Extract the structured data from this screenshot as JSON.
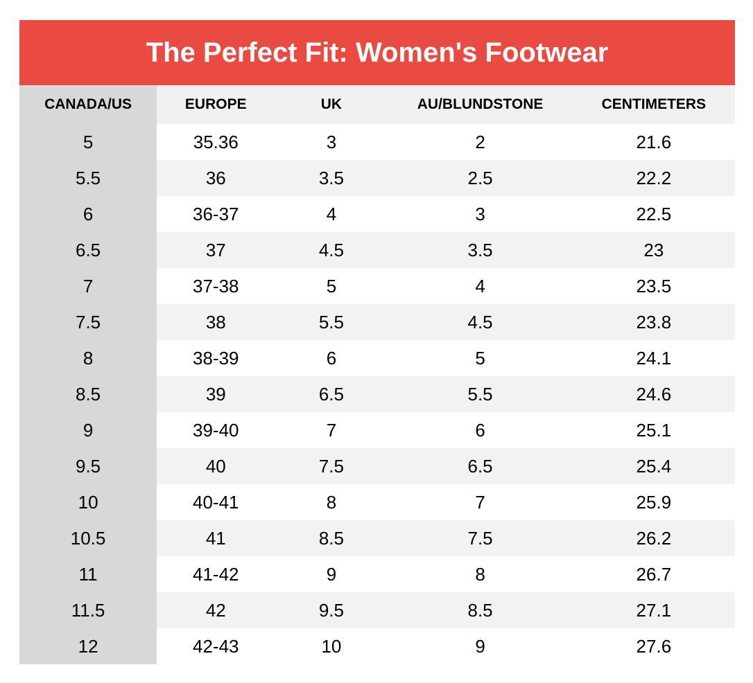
{
  "banner": {
    "title": "The Perfect Fit: Women's Footwear"
  },
  "colors": {
    "banner_bg": "#E94B43",
    "banner_text": "#FFFFFF",
    "first_col_bg": "#D8D8D8",
    "header_row_bg": "#F1F1F1",
    "stripe_bg": "#F2F2F2",
    "row_bg": "#FFFFFF",
    "text": "#000000"
  },
  "chart_data": {
    "type": "table",
    "title": "The Perfect Fit: Women's Footwear",
    "columns": [
      "CANADA/US",
      "EUROPE",
      "UK",
      "AU/BLUNDSTONE",
      "CENTIMETERS"
    ],
    "column_widths_percent": [
      19.2,
      16.5,
      15.8,
      25.8,
      22.7
    ],
    "rows": [
      [
        "5",
        "35.36",
        "3",
        "2",
        "21.6"
      ],
      [
        "5.5",
        "36",
        "3.5",
        "2.5",
        "22.2"
      ],
      [
        "6",
        "36-37",
        "4",
        "3",
        "22.5"
      ],
      [
        "6.5",
        "37",
        "4.5",
        "3.5",
        "23"
      ],
      [
        "7",
        "37-38",
        "5",
        "4",
        "23.5"
      ],
      [
        "7.5",
        "38",
        "5.5",
        "4.5",
        "23.8"
      ],
      [
        "8",
        "38-39",
        "6",
        "5",
        "24.1"
      ],
      [
        "8.5",
        "39",
        "6.5",
        "5.5",
        "24.6"
      ],
      [
        "9",
        "39-40",
        "7",
        "6",
        "25.1"
      ],
      [
        "9.5",
        "40",
        "7.5",
        "6.5",
        "25.4"
      ],
      [
        "10",
        "40-41",
        "8",
        "7",
        "25.9"
      ],
      [
        "10.5",
        "41",
        "8.5",
        "7.5",
        "26.2"
      ],
      [
        "11",
        "41-42",
        "9",
        "8",
        "26.7"
      ],
      [
        "11.5",
        "42",
        "9.5",
        "8.5",
        "27.1"
      ],
      [
        "12",
        "42-43",
        "10",
        "9",
        "27.6"
      ]
    ]
  }
}
